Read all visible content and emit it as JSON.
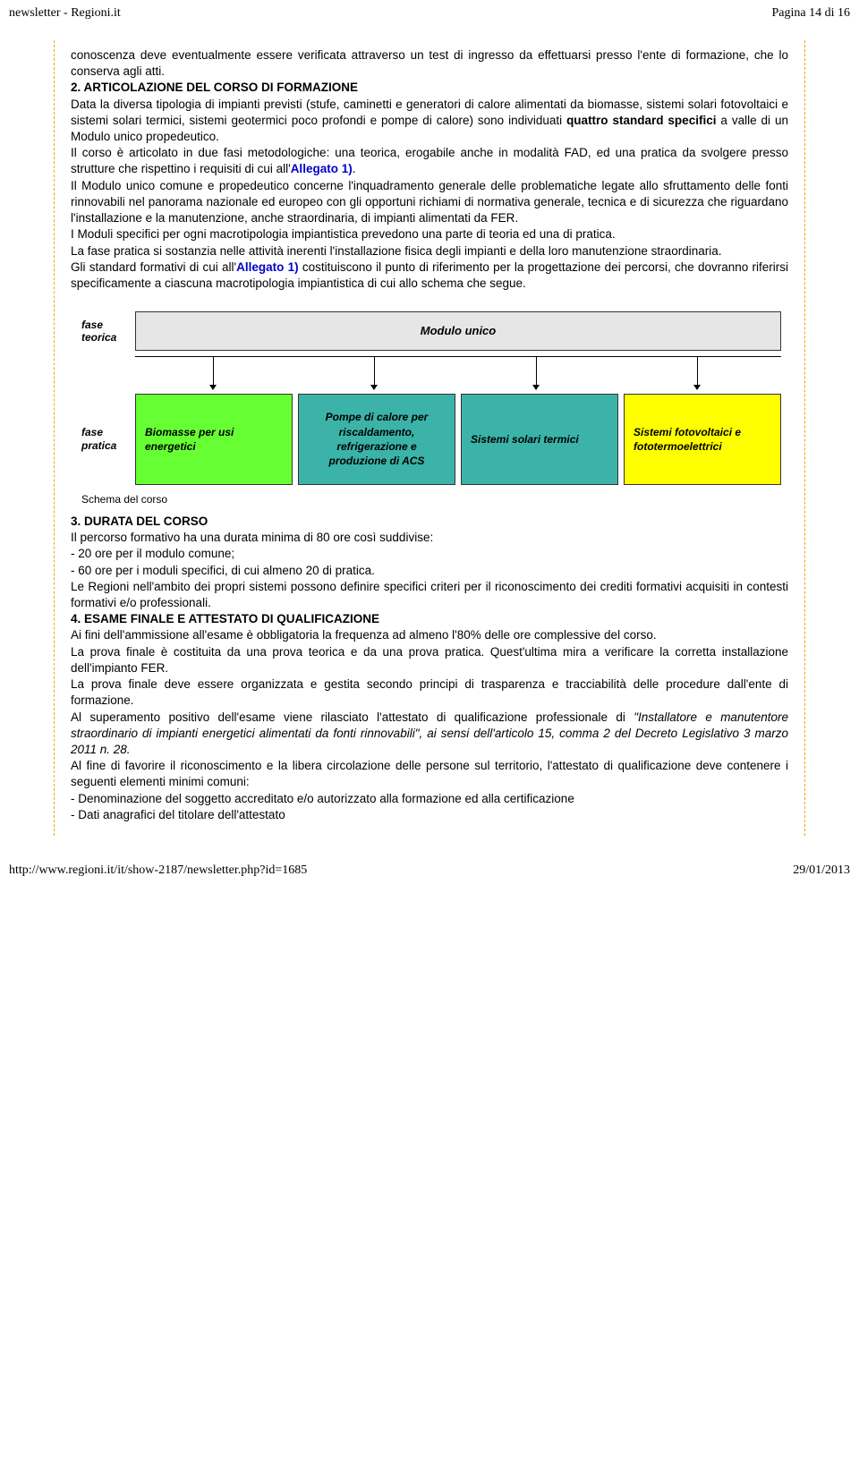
{
  "header": {
    "left": "newsletter - Regioni.it",
    "right": "Pagina 14 di 16"
  },
  "body": {
    "p1": "conoscenza deve eventualmente essere verificata attraverso un test di ingresso da effettuarsi presso l'ente di formazione, che lo conserva agli atti.",
    "h2": "2. ARTICOLAZIONE DEL CORSO DI FORMAZIONE",
    "p2a": "Data la diversa tipologia di impianti previsti (stufe, caminetti e generatori di calore alimentati da biomasse, sistemi solari fotovoltaici e sistemi solari termici, sistemi geotermici poco profondi e pompe di calore) sono individuati ",
    "p2b": "quattro standard specifici",
    "p2c": " a valle di un Modulo unico propedeutico.",
    "p3a": "Il corso è articolato in due fasi metodologiche: una teorica, erogabile anche in modalità FAD, ed una pratica da svolgere presso strutture che rispettino i requisiti di cui all'",
    "p3link": "Allegato 1)",
    "p3b": ".",
    "p4": "Il Modulo unico comune e propedeutico concerne l'inquadramento generale delle problematiche legate allo sfruttamento delle fonti rinnovabili nel panorama nazionale ed europeo con gli opportuni richiami di normativa generale, tecnica e di sicurezza che riguardano l'installazione e la manutenzione, anche straordinaria, di impianti alimentati da FER.",
    "p5": "I Moduli specifici per ogni macrotipologia impiantistica prevedono una parte di teoria ed una di pratica.",
    "p6": "La fase pratica si sostanzia nelle attività inerenti l'installazione fisica degli impianti e della loro manutenzione straordinaria.",
    "p7a": "Gli standard formativi di cui all'",
    "p7link": "Allegato 1)",
    "p7b": " costituiscono il punto di riferimento per la progettazione dei percorsi, che dovranno riferirsi specificamente a ciascuna macrotipologia impiantistica di cui allo schema che segue.",
    "h3": "3. DURATA DEL CORSO",
    "p8": "Il percorso formativo ha una durata minima di 80 ore così suddivise:",
    "p8a": "- 20 ore per il modulo comune;",
    "p8b": "- 60 ore per i moduli specifici, di cui almeno 20 di pratica.",
    "p9": "Le Regioni nell'ambito dei propri sistemi possono definire specifici criteri per il riconoscimento dei crediti formativi acquisiti in contesti formativi e/o professionali.",
    "h4": "4. ESAME FINALE E ATTESTATO DI QUALIFICAZIONE",
    "p10": "Ai fini dell'ammissione all'esame è obbligatoria la frequenza ad almeno l'80% delle ore complessive del corso.",
    "p11": "La prova finale è costituita da una prova teorica e da una prova pratica. Quest'ultima mira a verificare la corretta installazione dell'impianto FER.",
    "p12": "La prova finale deve essere organizzata e gestita secondo principi di trasparenza e tracciabilità delle procedure dall'ente di formazione.",
    "p13a": "Al superamento positivo dell'esame viene rilasciato l'attestato di qualificazione professionale di ",
    "p13i": "\"Installatore e manutentore straordinario di impianti energetici alimentati da fonti rinnovabili\", ai sensi dell'articolo 15, comma 2 del Decreto Legislativo 3 marzo 2011 n. 28.",
    "p14": "Al fine di favorire il riconoscimento e la libera circolazione delle persone sul territorio, l'attestato di qualificazione deve contenere i seguenti elementi minimi comuni:",
    "p14a": "- Denominazione del soggetto accreditato e/o autorizzato alla formazione ed alla certificazione",
    "p14b": "- Dati anagrafici del titolare dell'attestato"
  },
  "diagram": {
    "row_labels": {
      "teorica": "fase teorica",
      "pratica": "fase pratica"
    },
    "modulo_unico": "Modulo unico",
    "boxes": [
      {
        "label": "Biomasse per usi energetici",
        "bg": "#66ff33"
      },
      {
        "label": "Pompe di calore per riscaldamento, refrigerazione e produzione di ACS",
        "bg": "#3bb3a8"
      },
      {
        "label": "Sistemi solari termici",
        "bg": "#3bb3a8"
      },
      {
        "label": "Sistemi fotovoltaici e fototermoelettrici",
        "bg": "#ffff00"
      }
    ],
    "caption": "Schema del corso",
    "arrow_positions_pct": [
      12,
      37,
      62,
      87
    ]
  },
  "footer": {
    "left": "http://www.regioni.it/it/show-2187/newsletter.php?id=1685",
    "right": "29/01/2013"
  },
  "colors": {
    "dash_border": "#f5a400",
    "link": "#0000cc",
    "modulo_bg": "#e6e6e6"
  }
}
